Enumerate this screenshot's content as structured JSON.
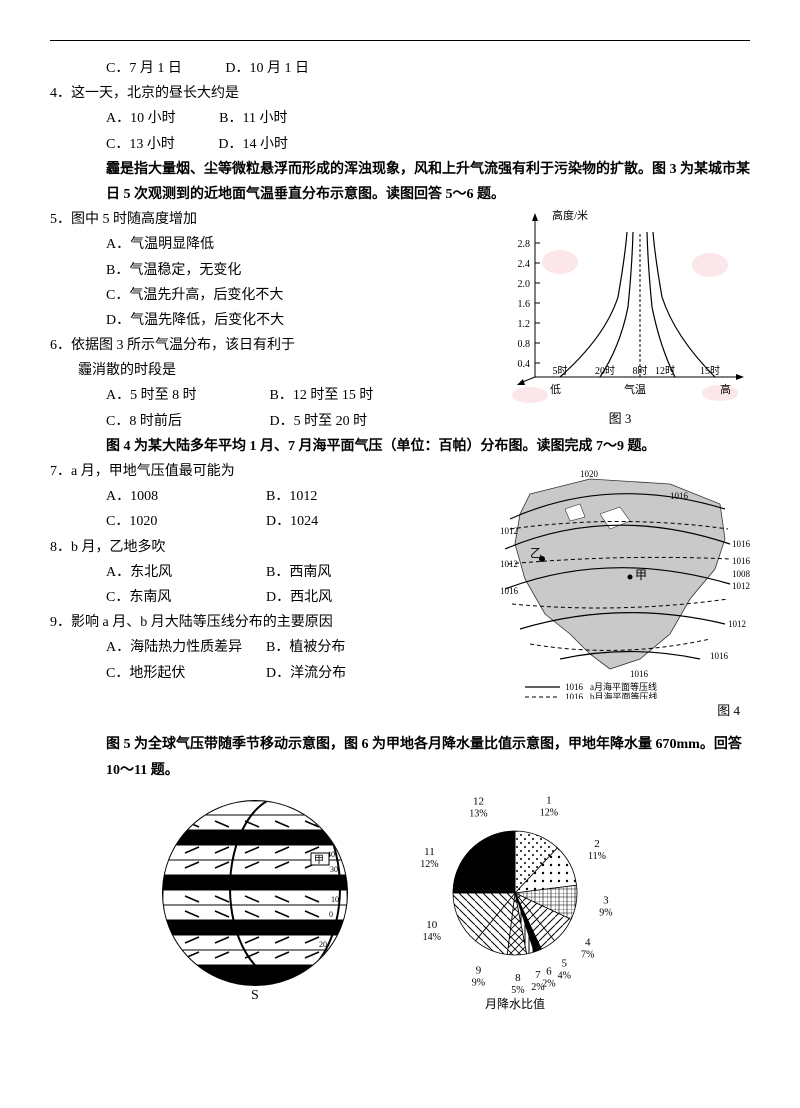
{
  "q3_cd": {
    "c": "C．7 月 1 日",
    "d": "D．10 月 1 日"
  },
  "q4": {
    "stem": "4．这一天，北京的昼长大约是",
    "a": "A．10 小时",
    "b": "B．11 小时",
    "c": "C．13 小时",
    "d": "D．14 小时"
  },
  "intro56": "霾是指大量烟、尘等微粒悬浮而形成的浑浊现象，风和上升气流强有利于污染物的扩散。图 3 为某城市某日 5 次观测到的近地面气温垂直分布示意图。读图回答 5～6 题。",
  "q5": {
    "stem": "5．图中 5 时随高度增加",
    "a": "A．气温明显降低",
    "b": "B．气温稳定，无变化",
    "c": "C．气温先升高，后变化不大",
    "d": "D．气温先降低，后变化不大"
  },
  "q6": {
    "stem": "6．依据图 3 所示气温分布，该日有利于",
    "stem2": "霾消散的时段是",
    "a": "A．5 时至 8 时",
    "b": "B．12 时至 15 时",
    "c": "C．8 时前后",
    "d": "D．5 时至 20 时"
  },
  "fig3": {
    "caption": "图 3",
    "ylabel": "高度/米",
    "yticks": [
      "0.4",
      "0.8",
      "1.2",
      "1.6",
      "2.0",
      "2.4",
      "2.8"
    ],
    "xlabels": [
      "5时",
      "20时",
      "8时",
      "12时",
      "15时"
    ],
    "xaxis": {
      "left": "低",
      "mid": "气温",
      "right": "高"
    },
    "bg": "#ffffff",
    "axis_color": "#000000",
    "line_color": "#000000",
    "pink": "#f5c6cb"
  },
  "intro79": "图 4 为某大陆多年平均 1 月、7 月海平面气压（单位：百帕）分布图。读图完成 7～9 题。",
  "q7": {
    "stem": "7．a 月，甲地气压值最可能为",
    "a": "A．1008",
    "b": "B．1012",
    "c": "C．1020",
    "d": "D．1024"
  },
  "q8": {
    "stem": "8．b 月，乙地多吹",
    "a": "A．东北风",
    "b": "B．西南风",
    "c": "C．东南风",
    "d": "D．西北风"
  },
  "q9": {
    "stem": "9．影响 a 月、b 月大陆等压线分布的主要原因",
    "a": "A．海陆热力性质差异",
    "b": "B．植被分布",
    "c": "C．地形起伏",
    "d": "D．洋流分布"
  },
  "fig4": {
    "caption": "图 4",
    "labels": [
      "1020",
      "1016",
      "1012",
      "1012",
      "1016",
      "1016",
      "1016",
      "1012",
      "1008",
      "1012",
      "1016",
      "1016"
    ],
    "yi": "乙",
    "jia": "甲",
    "legend_a": "a月海平面等压线",
    "legend_b": "b月海平面等压线",
    "legend_val": "1016",
    "land": "#bfbfbf",
    "line": "#000000"
  },
  "intro1011": "图 5 为全球气压带随季节移动示意图，图 6 为甲地各月降水量比值示意图，甲地年降水量 670mm。回答 10～11 题。",
  "fig5": {
    "s": "S",
    "jia": "甲",
    "lats": [
      "70",
      "60",
      "50",
      "40",
      "30",
      "20",
      "10",
      "0",
      "10",
      "20",
      "30",
      "40",
      "50",
      "60"
    ],
    "circle_fill": "#ffffff",
    "line": "#000000"
  },
  "fig6": {
    "caption": "月降水比值",
    "slices": [
      {
        "m": "1",
        "v": "12%",
        "color": "#000000",
        "pattern": "dots"
      },
      {
        "m": "2",
        "v": "11%",
        "color": "#000000",
        "pattern": "dots2"
      },
      {
        "m": "3",
        "v": "9%",
        "color": "#cccccc",
        "pattern": "grid"
      },
      {
        "m": "4",
        "v": "7%",
        "color": "#555555",
        "pattern": "diag"
      },
      {
        "m": "5",
        "v": "4%",
        "color": "#999999",
        "pattern": "diag"
      },
      {
        "m": "6",
        "v": "2%",
        "color": "#333333",
        "pattern": "solid"
      },
      {
        "m": "7",
        "v": "2%",
        "color": "#888888",
        "pattern": "vlines"
      },
      {
        "m": "8",
        "v": "5%",
        "color": "#000000",
        "pattern": "cross"
      },
      {
        "m": "9",
        "v": "9%",
        "color": "#666666",
        "pattern": "diag2"
      },
      {
        "m": "10",
        "v": "14%",
        "color": "#000000",
        "pattern": "diag2"
      },
      {
        "m": "11",
        "v": "12%",
        "color": "#1a1a1a",
        "pattern": "solid"
      },
      {
        "m": "12",
        "v": "13%",
        "color": "#000000",
        "pattern": "solid"
      }
    ]
  }
}
